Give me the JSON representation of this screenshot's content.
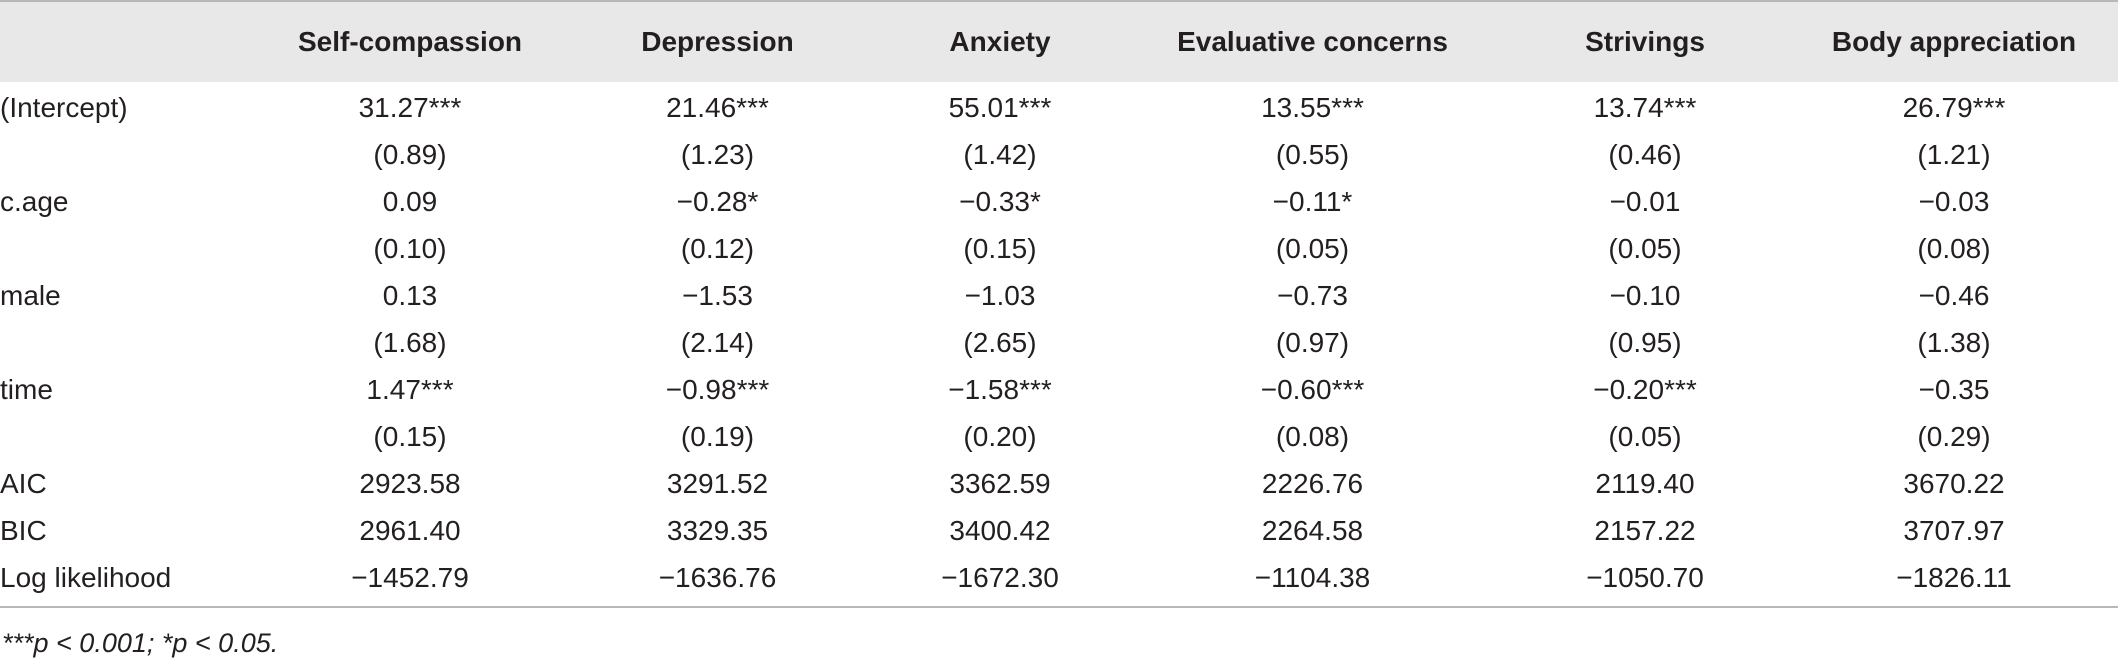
{
  "table": {
    "stub_header": "",
    "columns": [
      "Self-compassion",
      "Depression",
      "Anxiety",
      "Evaluative concerns",
      "Strivings",
      "Body appreciation"
    ],
    "rows": [
      {
        "label": "(Intercept)",
        "cells": [
          "31.27***",
          "21.46***",
          "55.01***",
          "13.55***",
          "13.74***",
          "26.79***"
        ]
      },
      {
        "label": "",
        "cells": [
          "(0.89)",
          "(1.23)",
          "(1.42)",
          "(0.55)",
          "(0.46)",
          "(1.21)"
        ]
      },
      {
        "label": "c.age",
        "cells": [
          "0.09",
          "−0.28*",
          "−0.33*",
          "−0.11*",
          "−0.01",
          "−0.03"
        ]
      },
      {
        "label": "",
        "cells": [
          "(0.10)",
          "(0.12)",
          "(0.15)",
          "(0.05)",
          "(0.05)",
          "(0.08)"
        ]
      },
      {
        "label": "male",
        "cells": [
          "0.13",
          "−1.53",
          "−1.03",
          "−0.73",
          "−0.10",
          "−0.46"
        ]
      },
      {
        "label": "",
        "cells": [
          "(1.68)",
          "(2.14)",
          "(2.65)",
          "(0.97)",
          "(0.95)",
          "(1.38)"
        ]
      },
      {
        "label": "time",
        "cells": [
          "1.47***",
          "−0.98***",
          "−1.58***",
          "−0.60***",
          "−0.20***",
          "−0.35"
        ]
      },
      {
        "label": "",
        "cells": [
          "(0.15)",
          "(0.19)",
          "(0.20)",
          "(0.08)",
          "(0.05)",
          "(0.29)"
        ]
      },
      {
        "label": "AIC",
        "cells": [
          "2923.58",
          "3291.52",
          "3362.59",
          "2226.76",
          "2119.40",
          "3670.22"
        ]
      },
      {
        "label": "BIC",
        "cells": [
          "2961.40",
          "3329.35",
          "3400.42",
          "2264.58",
          "2157.22",
          "3707.97"
        ]
      },
      {
        "label": "Log likelihood",
        "cells": [
          "−1452.79",
          "−1636.76",
          "−1672.30",
          "−1104.38",
          "−1050.70",
          "−1826.11"
        ]
      }
    ]
  },
  "footnote": "***p < 0.001; *p < 0.05."
}
